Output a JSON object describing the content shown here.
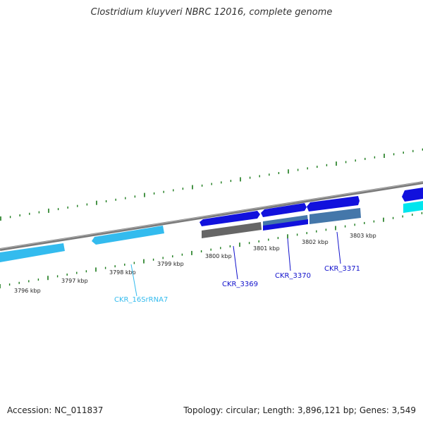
{
  "title": "Clostridium kluyveri NBRC 12016, complete genome",
  "footer": {
    "accession": "Accession: NC_011837",
    "summary": "Topology: circular; Length: 3,896,121 bp; Genes: 3,549"
  },
  "colors": {
    "backbone": "#8a8a8a",
    "tick": "#1a7a1a",
    "rna": "#33bbee",
    "cds": "#1111dd",
    "gray_feature": "#666666",
    "steel_feature": "#4477aa",
    "cyan_feature": "#00e5ee"
  },
  "scale_labels": [
    "3796 kbp",
    "3797 kbp",
    "3798 kbp",
    "3799 kbp",
    "3800 kbp",
    "3801 kbp",
    "3802 kbp",
    "3803 kbp"
  ],
  "gene_labels": [
    {
      "name": "CKR_16SrRNA7",
      "color": "#33bbee"
    },
    {
      "name": "CKR_3369",
      "color": "#1111cc"
    },
    {
      "name": "CKR_3370",
      "color": "#1111cc"
    },
    {
      "name": "CKR_3371",
      "color": "#1111cc"
    }
  ]
}
